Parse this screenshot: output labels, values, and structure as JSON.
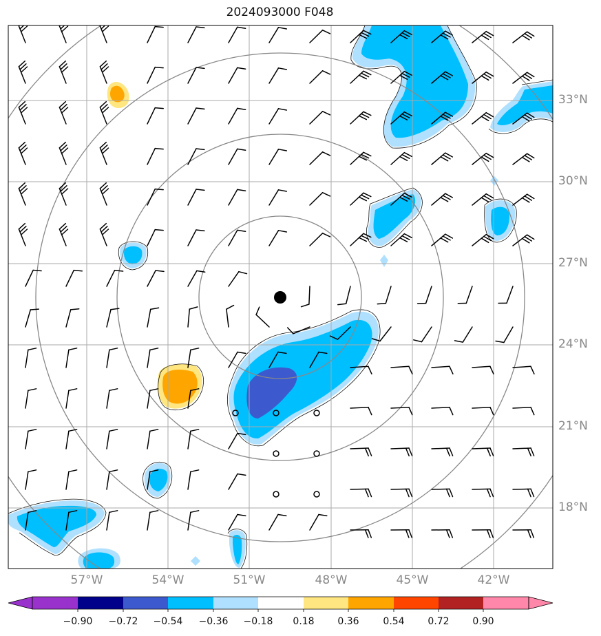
{
  "title": "2024093000 F048",
  "lat_labels": [
    "33°N",
    "30°N",
    "27°N",
    "24°N",
    "21°N",
    "18°N"
  ],
  "lon_labels": [
    "57°W",
    "54°W",
    "51°W",
    "48°W",
    "45°W",
    "42°W"
  ],
  "colorbar": {
    "ticks": [
      "−0.90",
      "−0.72",
      "−0.54",
      "−0.36",
      "−0.18",
      "0.18",
      "0.36",
      "0.54",
      "0.72",
      "0.90"
    ],
    "colors": [
      "#9932cc",
      "#00008b",
      "#3c5acd",
      "#00bfff",
      "#b0e0ff",
      "#ffffff",
      "#ffe680",
      "#ffa500",
      "#ff4500",
      "#b22222",
      "#ff88aa"
    ]
  },
  "storm_center": {
    "lon": -49.9,
    "lat": 25.7
  }
}
